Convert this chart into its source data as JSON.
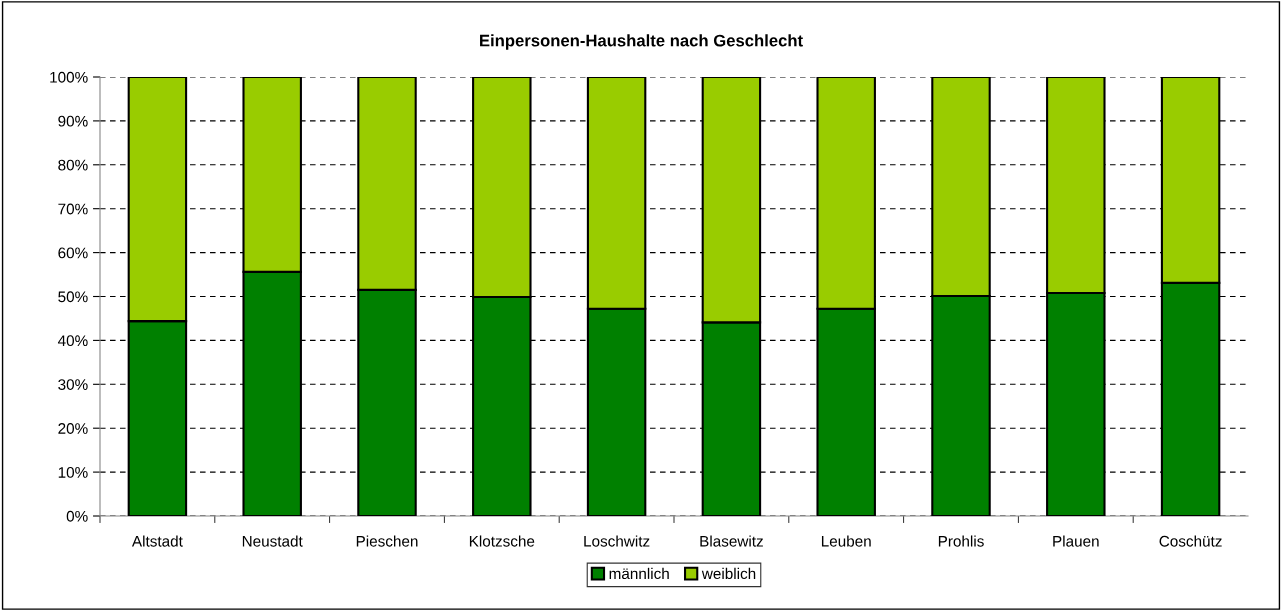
{
  "chart_data": {
    "type": "bar",
    "title": "Einpersonen-Haushalte nach Geschlecht",
    "categories": [
      "Altstadt",
      "Neustadt",
      "Pieschen",
      "Klotzsche",
      "Loschwitz",
      "Blasewitz",
      "Leuben",
      "Prohlis",
      "Plauen",
      "Coschütz"
    ],
    "stacked": true,
    "series": [
      {
        "name": "männlich",
        "color": "#008000",
        "values": [
          44.4,
          55.6,
          51.5,
          49.9,
          47.2,
          44.1,
          47.2,
          50.1,
          50.8,
          53.1
        ]
      },
      {
        "name": "weiblich",
        "color": "#99cc00",
        "values": [
          55.6,
          44.4,
          48.5,
          50.1,
          52.8,
          55.9,
          52.8,
          49.9,
          49.2,
          46.9
        ]
      }
    ],
    "ylim": [
      0,
      100
    ],
    "yticks": [
      {
        "value": 0,
        "label": "0%"
      },
      {
        "value": 10,
        "label": "10%"
      },
      {
        "value": 20,
        "label": "20%"
      },
      {
        "value": 30,
        "label": "30%"
      },
      {
        "value": 40,
        "label": "40%"
      },
      {
        "value": 50,
        "label": "50%"
      },
      {
        "value": 60,
        "label": "60%"
      },
      {
        "value": 70,
        "label": "70%"
      },
      {
        "value": 80,
        "label": "80%"
      },
      {
        "value": 90,
        "label": "90%"
      },
      {
        "value": 100,
        "label": "100%"
      }
    ],
    "grid": "y",
    "legend": "bottom"
  }
}
